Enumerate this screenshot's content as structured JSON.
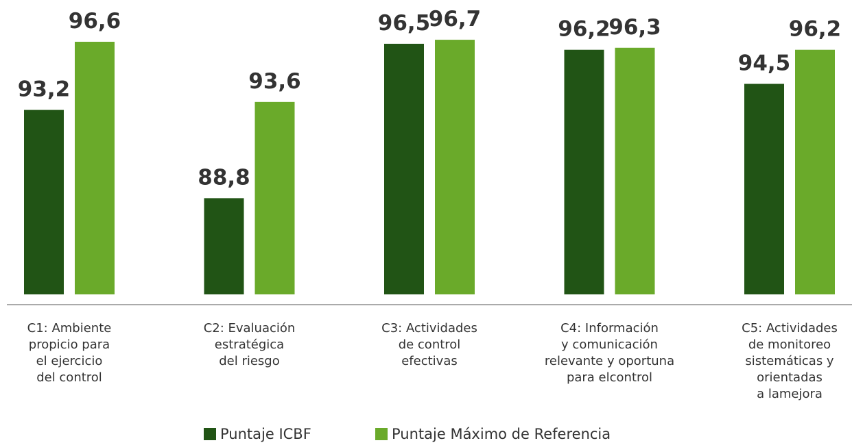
{
  "chart_data": {
    "type": "bar",
    "categories": [
      "C1: Ambiente\npropicio para\nel ejercicio\ndel control",
      "C2: Evaluación\nestratégica\ndel riesgo",
      "C3: Actividades\nde control\nefectivas",
      "C4: Información\ny comunicación\nrelevante y oportuna\npara elcontrol",
      "C5: Actividades\nde monitoreo\nsistemáticas y\norientadas\na lamejora"
    ],
    "series": [
      {
        "name": "Puntaje ICBF",
        "color": "#215415",
        "values": [
          93.2,
          88.8,
          96.5,
          96.2,
          94.5
        ],
        "value_labels": [
          "93,2",
          "88,8",
          "96,5",
          "96,2",
          "94,5"
        ]
      },
      {
        "name": "Puntaje Máximo de Referencia",
        "color": "#6aaa2a",
        "values": [
          96.6,
          93.6,
          96.7,
          96.3,
          96.2
        ],
        "value_labels": [
          "96,6",
          "93,6",
          "96,7",
          "96,3",
          "96,2"
        ]
      }
    ],
    "ylim": [
      84,
      98
    ],
    "legend": "bottom"
  }
}
